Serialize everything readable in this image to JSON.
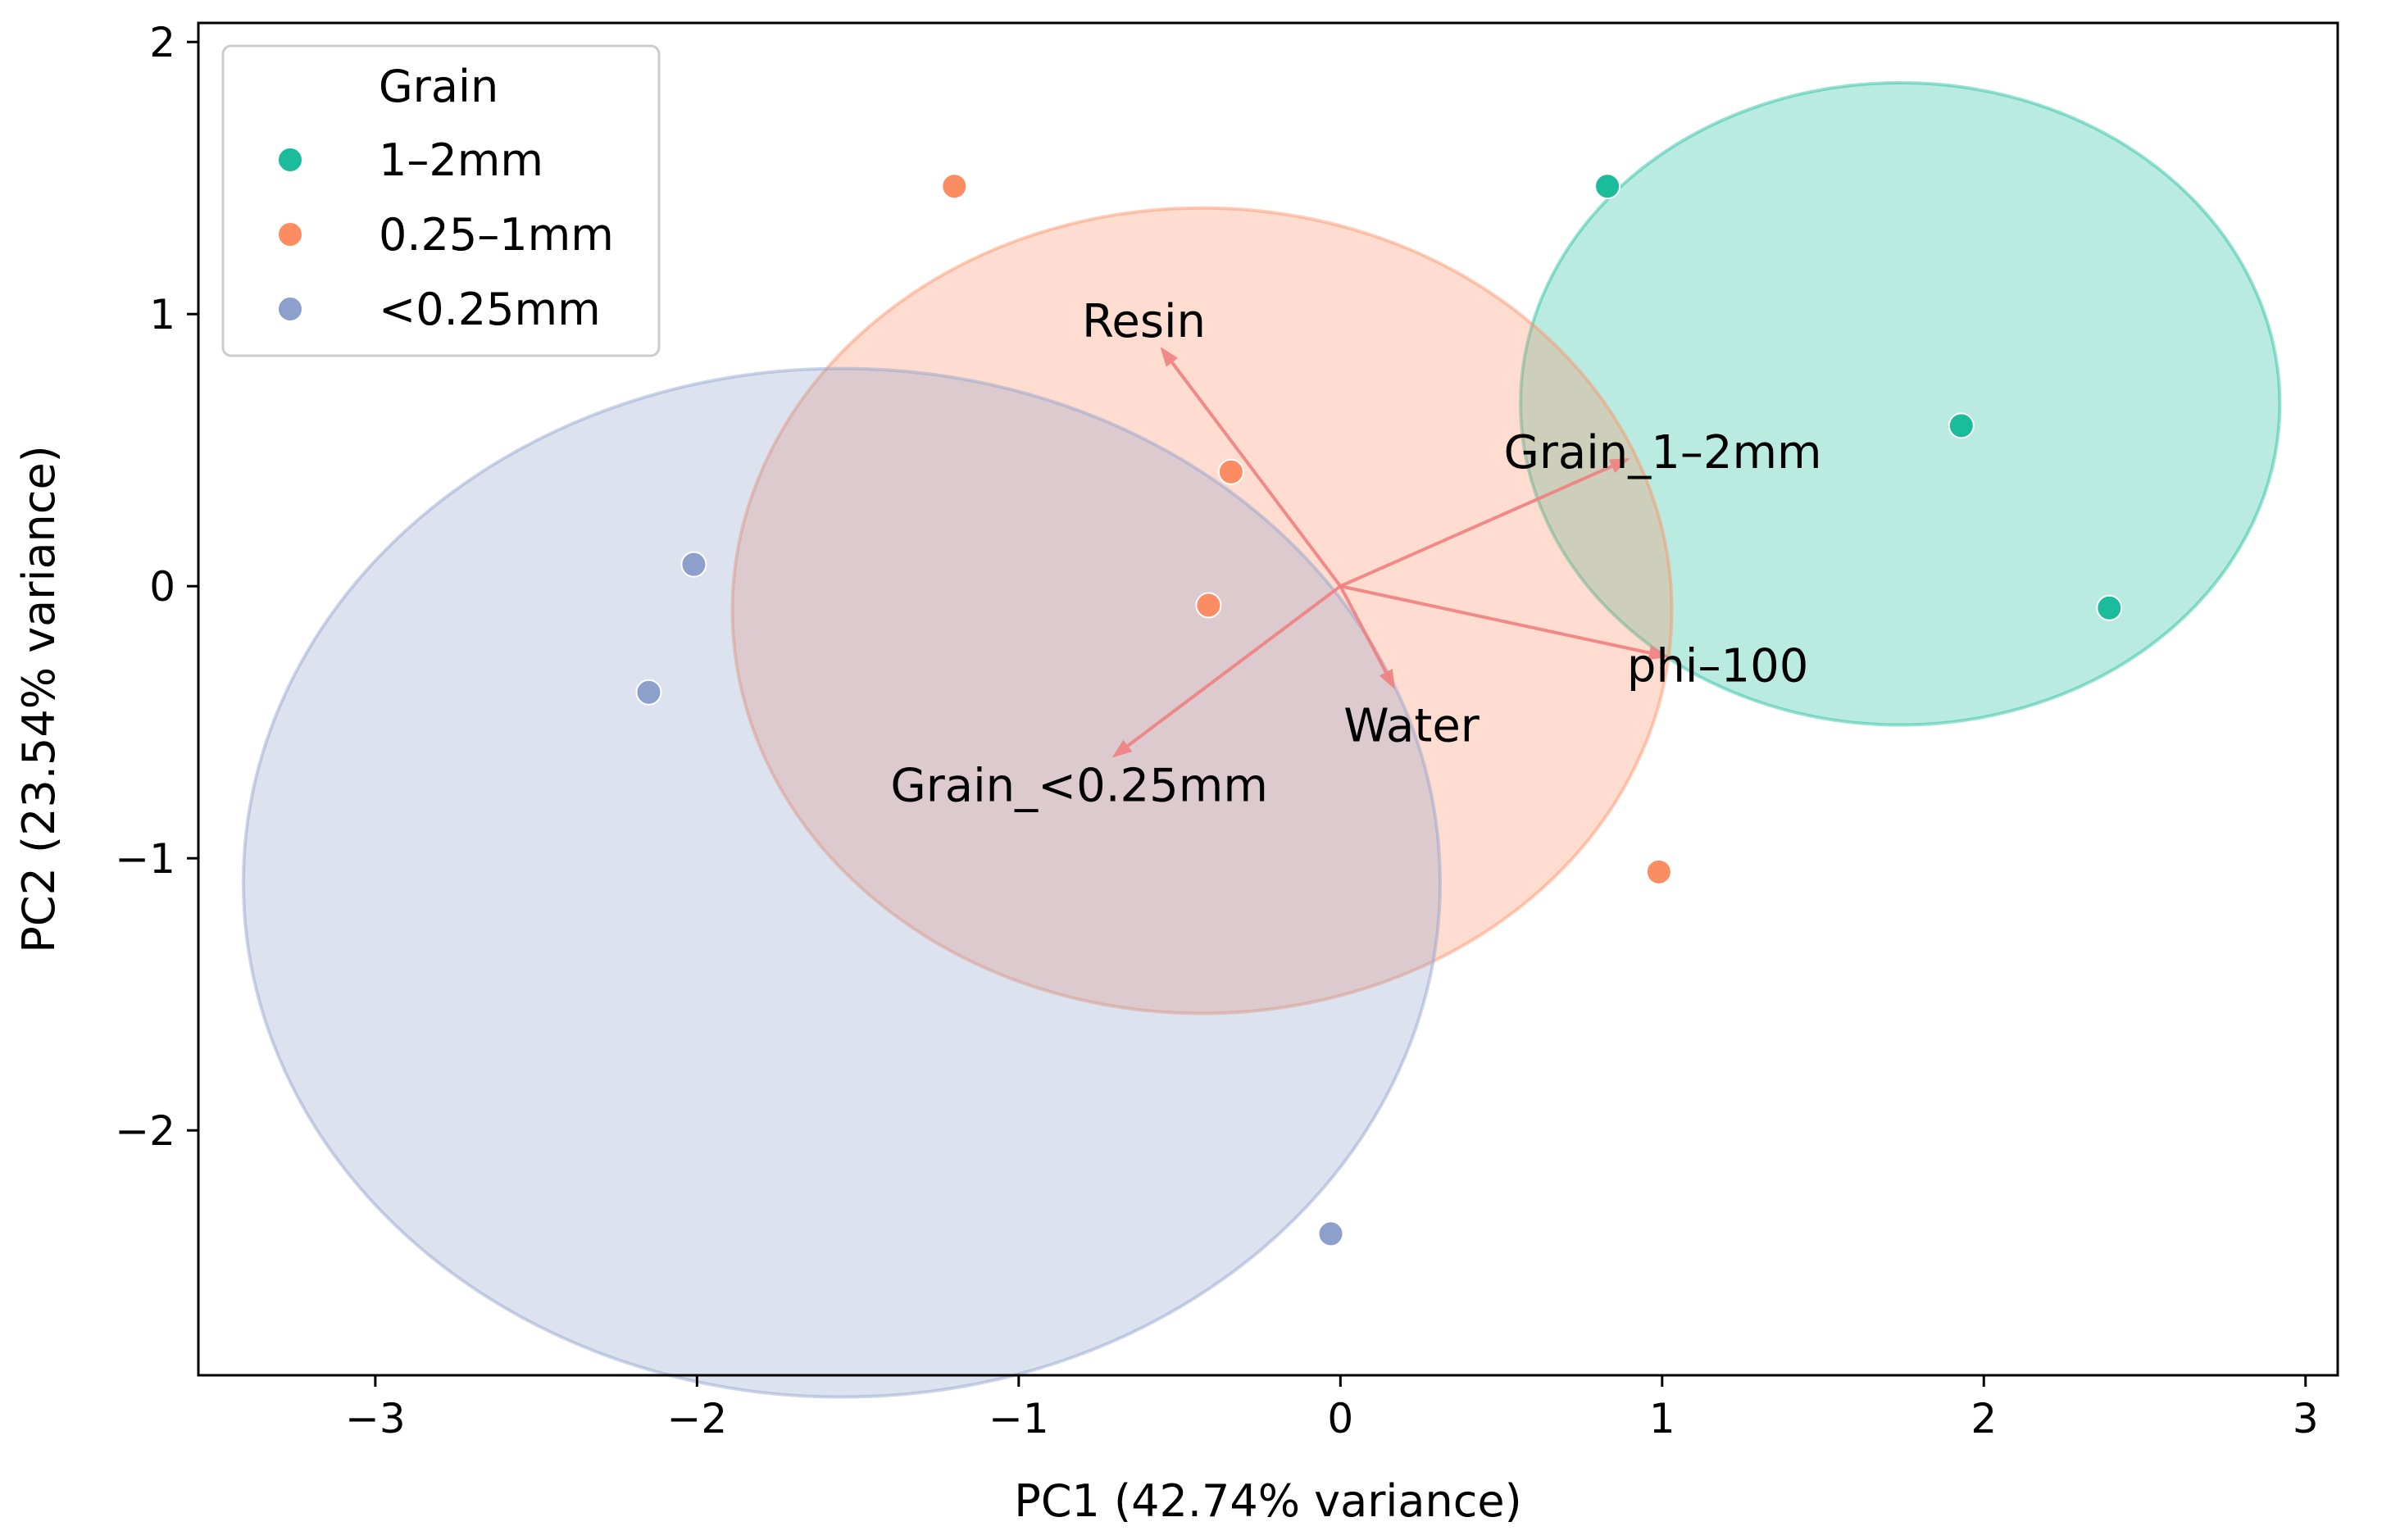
{
  "chart_data": {
    "type": "scatter",
    "title": "",
    "xlabel": "PC1 (42.74% variance)",
    "ylabel": "PC2 (23.54% variance)",
    "xlim": [
      -3.55,
      3.1
    ],
    "ylim": [
      -2.9,
      2.07
    ],
    "xticks": [
      -3,
      -2,
      -1,
      0,
      1,
      2,
      3
    ],
    "yticks": [
      -2,
      -1,
      0,
      1,
      2
    ],
    "xtick_labels": [
      "−3",
      "−2",
      "−1",
      "0",
      "1",
      "2",
      "3"
    ],
    "ytick_labels": [
      "−2",
      "−1",
      "0",
      "1",
      "2"
    ],
    "grid": false,
    "legend": {
      "title": "Grain",
      "placement": "top-left"
    },
    "series": [
      {
        "name": "1–2mm",
        "color": "#1ABC9C",
        "ellipse": {
          "cx": 1.74,
          "cy": 0.67,
          "rx": 1.18,
          "ry": 1.18
        },
        "points": [
          {
            "x": 0.83,
            "y": 1.47
          },
          {
            "x": 1.93,
            "y": 0.59
          },
          {
            "x": 2.39,
            "y": -0.08
          }
        ]
      },
      {
        "name": "0.25–1mm",
        "color": "#FC8D62",
        "ellipse": {
          "cx": -0.43,
          "cy": -0.09,
          "rx": 1.46,
          "ry": 1.48
        },
        "points": [
          {
            "x": -1.2,
            "y": 1.47
          },
          {
            "x": -0.34,
            "y": 0.42
          },
          {
            "x": -0.41,
            "y": -0.07
          },
          {
            "x": 0.99,
            "y": -1.05
          }
        ]
      },
      {
        "name": "<0.25mm",
        "color": "#8DA0CB",
        "ellipse": {
          "cx": -1.55,
          "cy": -1.09,
          "rx": 1.86,
          "ry": 1.89
        },
        "points": [
          {
            "x": -2.01,
            "y": 0.08
          },
          {
            "x": -2.15,
            "y": -0.39
          },
          {
            "x": -0.03,
            "y": -2.38
          }
        ]
      }
    ],
    "loadings": [
      {
        "name": "Resin",
        "x": -0.56,
        "y": 0.88
      },
      {
        "name": "Grain_1–2mm",
        "x": 0.9,
        "y": 0.47
      },
      {
        "name": "phi–100",
        "x": 1.02,
        "y": -0.26
      },
      {
        "name": "Water",
        "x": 0.17,
        "y": -0.38
      },
      {
        "name": "Grain_<0.25mm",
        "x": -0.71,
        "y": -0.63
      }
    ],
    "loading_labels": {
      "Resin": "Resin",
      "Grain_1–2mm": "Grain_1–2mm",
      "phi–100": "phi–100",
      "Water": "Water",
      "Grain_<0.25mm": "Grain_<0.25mm"
    },
    "arrow_color": "#F08080"
  }
}
